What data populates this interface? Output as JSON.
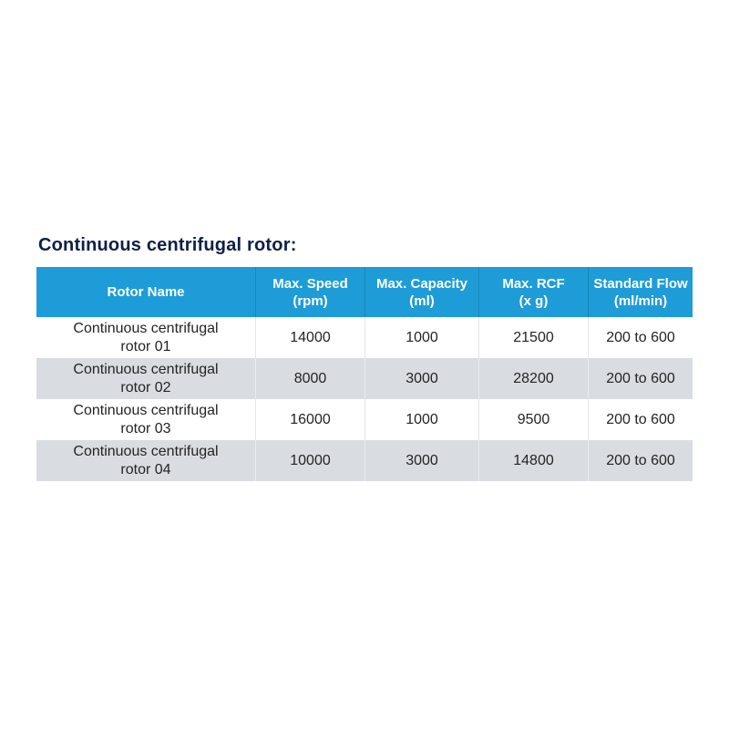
{
  "title": "Continuous centrifugal rotor:",
  "table": {
    "columns": {
      "rotor_name": {
        "line1": "Rotor Name"
      },
      "max_speed": {
        "line1": "Max. Speed",
        "line2": "(rpm)"
      },
      "max_capacity": {
        "line1": "Max. Capacity",
        "line2": "(ml)"
      },
      "max_rcf": {
        "line1": "Max. RCF",
        "line2": "(x g)"
      },
      "standard_flow": {
        "line1": "Standard Flow",
        "line2": "(ml/min)"
      }
    },
    "rows": [
      {
        "name_line1": "Continuous centrifugal",
        "name_line2": "rotor 01",
        "max_speed_rpm": "14000",
        "max_capacity_ml": "1000",
        "max_rcf_xg": "21500",
        "standard_flow_ml_min": "200 to 600"
      },
      {
        "name_line1": "Continuous centrifugal",
        "name_line2": "rotor 02",
        "max_speed_rpm": "8000",
        "max_capacity_ml": "3000",
        "max_rcf_xg": "28200",
        "standard_flow_ml_min": "200 to 600"
      },
      {
        "name_line1": "Continuous centrifugal",
        "name_line2": "rotor 03",
        "max_speed_rpm": "16000",
        "max_capacity_ml": "1000",
        "max_rcf_xg": "9500",
        "standard_flow_ml_min": "200 to 600"
      },
      {
        "name_line1": "Continuous centrifugal",
        "name_line2": "rotor 04",
        "max_speed_rpm": "10000",
        "max_capacity_ml": "3000",
        "max_rcf_xg": "14800",
        "standard_flow_ml_min": "200 to 600"
      }
    ]
  },
  "colors": {
    "header_background": "#1e9cd7",
    "alt_row_background": "#d9dce1",
    "title_color": "#0e2047",
    "body_text_color": "#242424",
    "header_text_color": "#ffffff"
  }
}
